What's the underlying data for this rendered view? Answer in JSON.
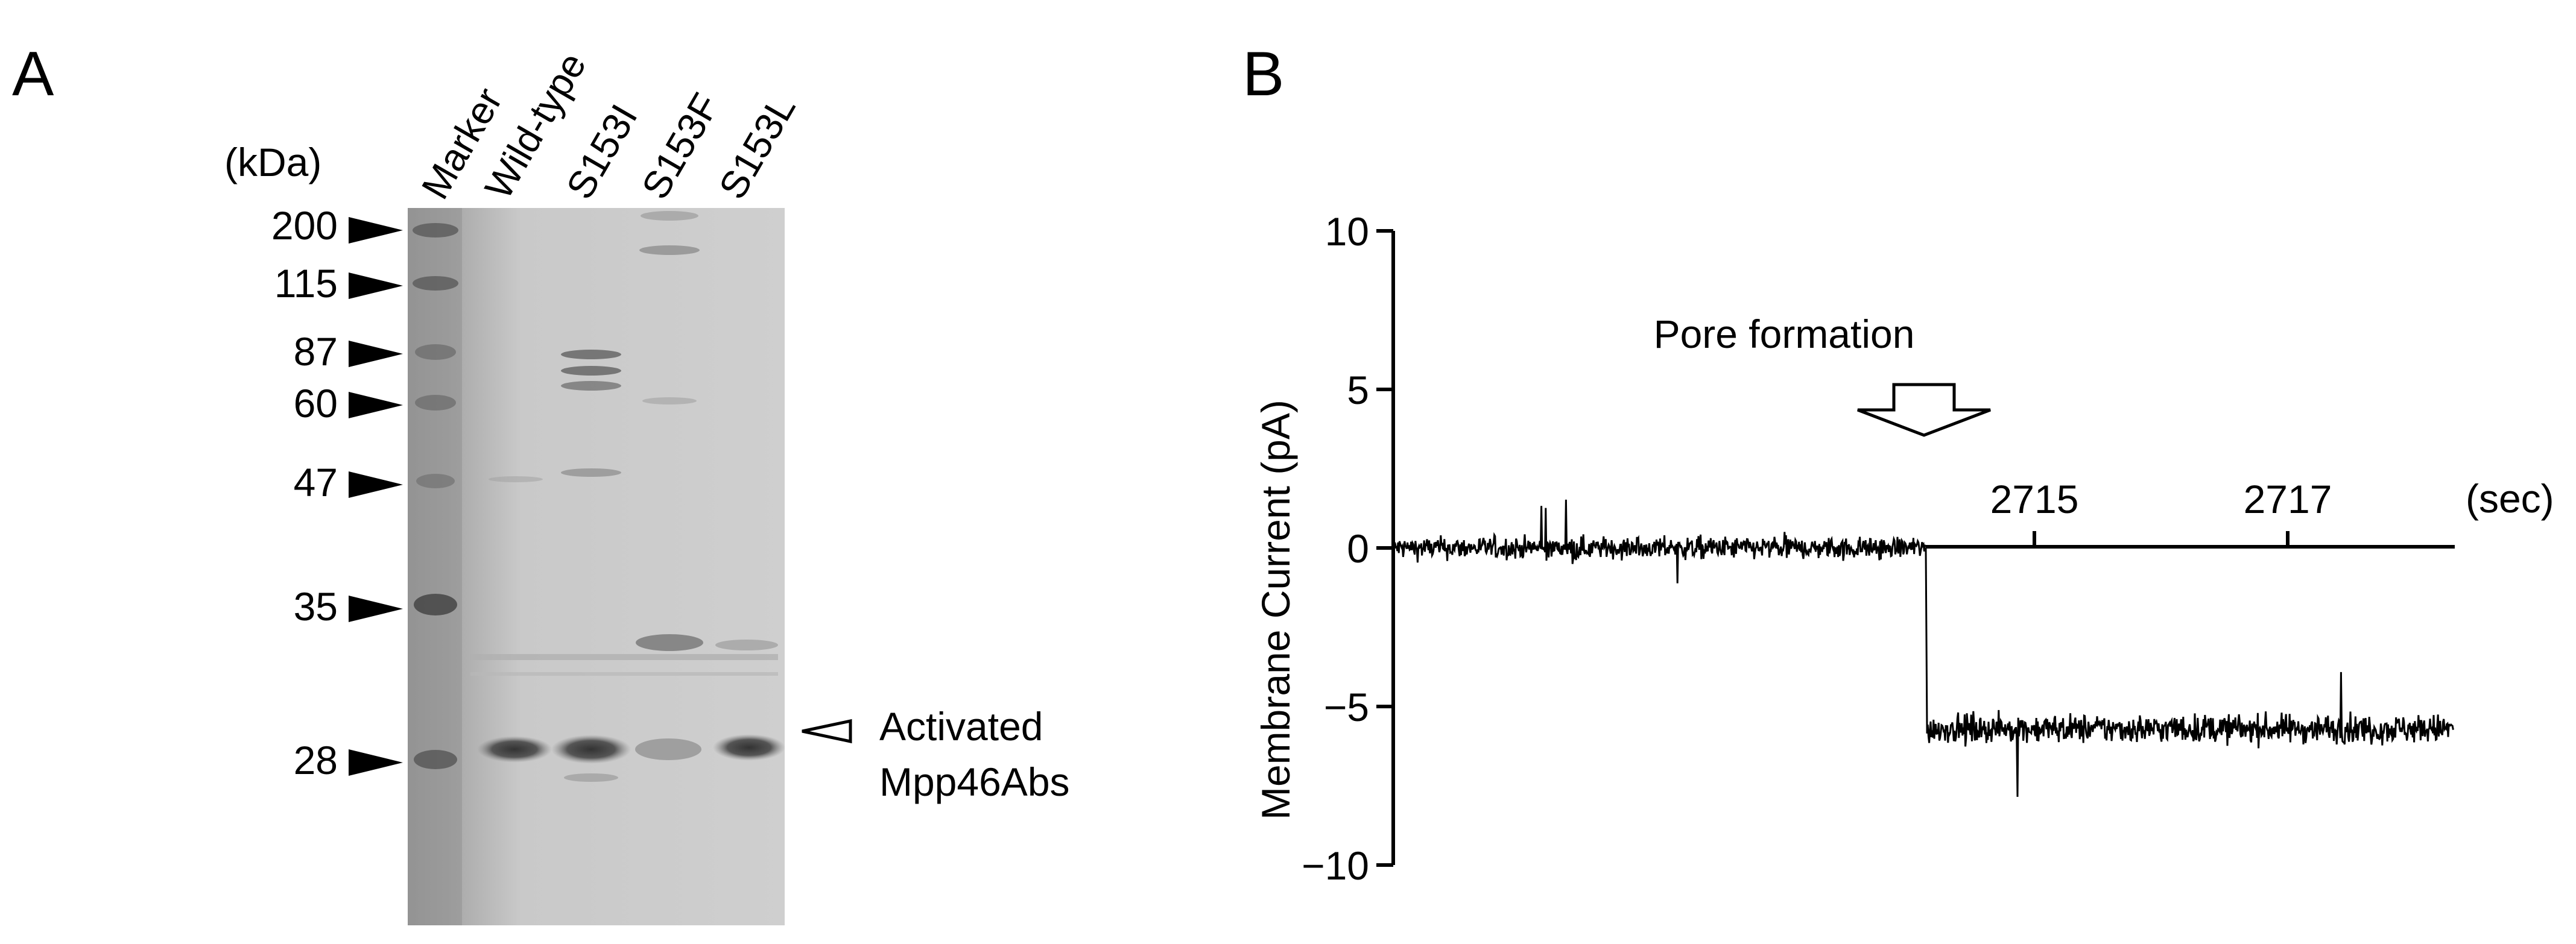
{
  "panel_a": {
    "letter": "A",
    "unit_label": "(kDa)",
    "lanes": [
      {
        "label": "Marker"
      },
      {
        "label": "Wild-type"
      },
      {
        "label": "S153I"
      },
      {
        "label": "S153F"
      },
      {
        "label": "S153L"
      }
    ],
    "markers": [
      "200",
      "115",
      "87",
      "60",
      "47",
      "35",
      "28"
    ],
    "annotation_line1": "Activated",
    "annotation_line2": "Mpp46Abs"
  },
  "panel_b": {
    "letter": "B",
    "chart_data": {
      "type": "line",
      "title": "",
      "ylabel": "Membrane Current (pA)",
      "xlabel": "(sec)",
      "ylim": [
        -10,
        10
      ],
      "yticks": [
        "10",
        "5",
        "0",
        "−5",
        "−10"
      ],
      "xticks": [
        "2715",
        "2717"
      ],
      "annotation": "Pore formation",
      "series": [
        {
          "segment": "before pore formation",
          "mean_current_pA": 0,
          "noise_range_pA": [
            -1.5,
            2.0
          ]
        },
        {
          "segment": "after pore formation",
          "mean_current_pA": -5.7,
          "noise_range_pA": [
            -8.0,
            -3.5
          ]
        }
      ]
    }
  }
}
